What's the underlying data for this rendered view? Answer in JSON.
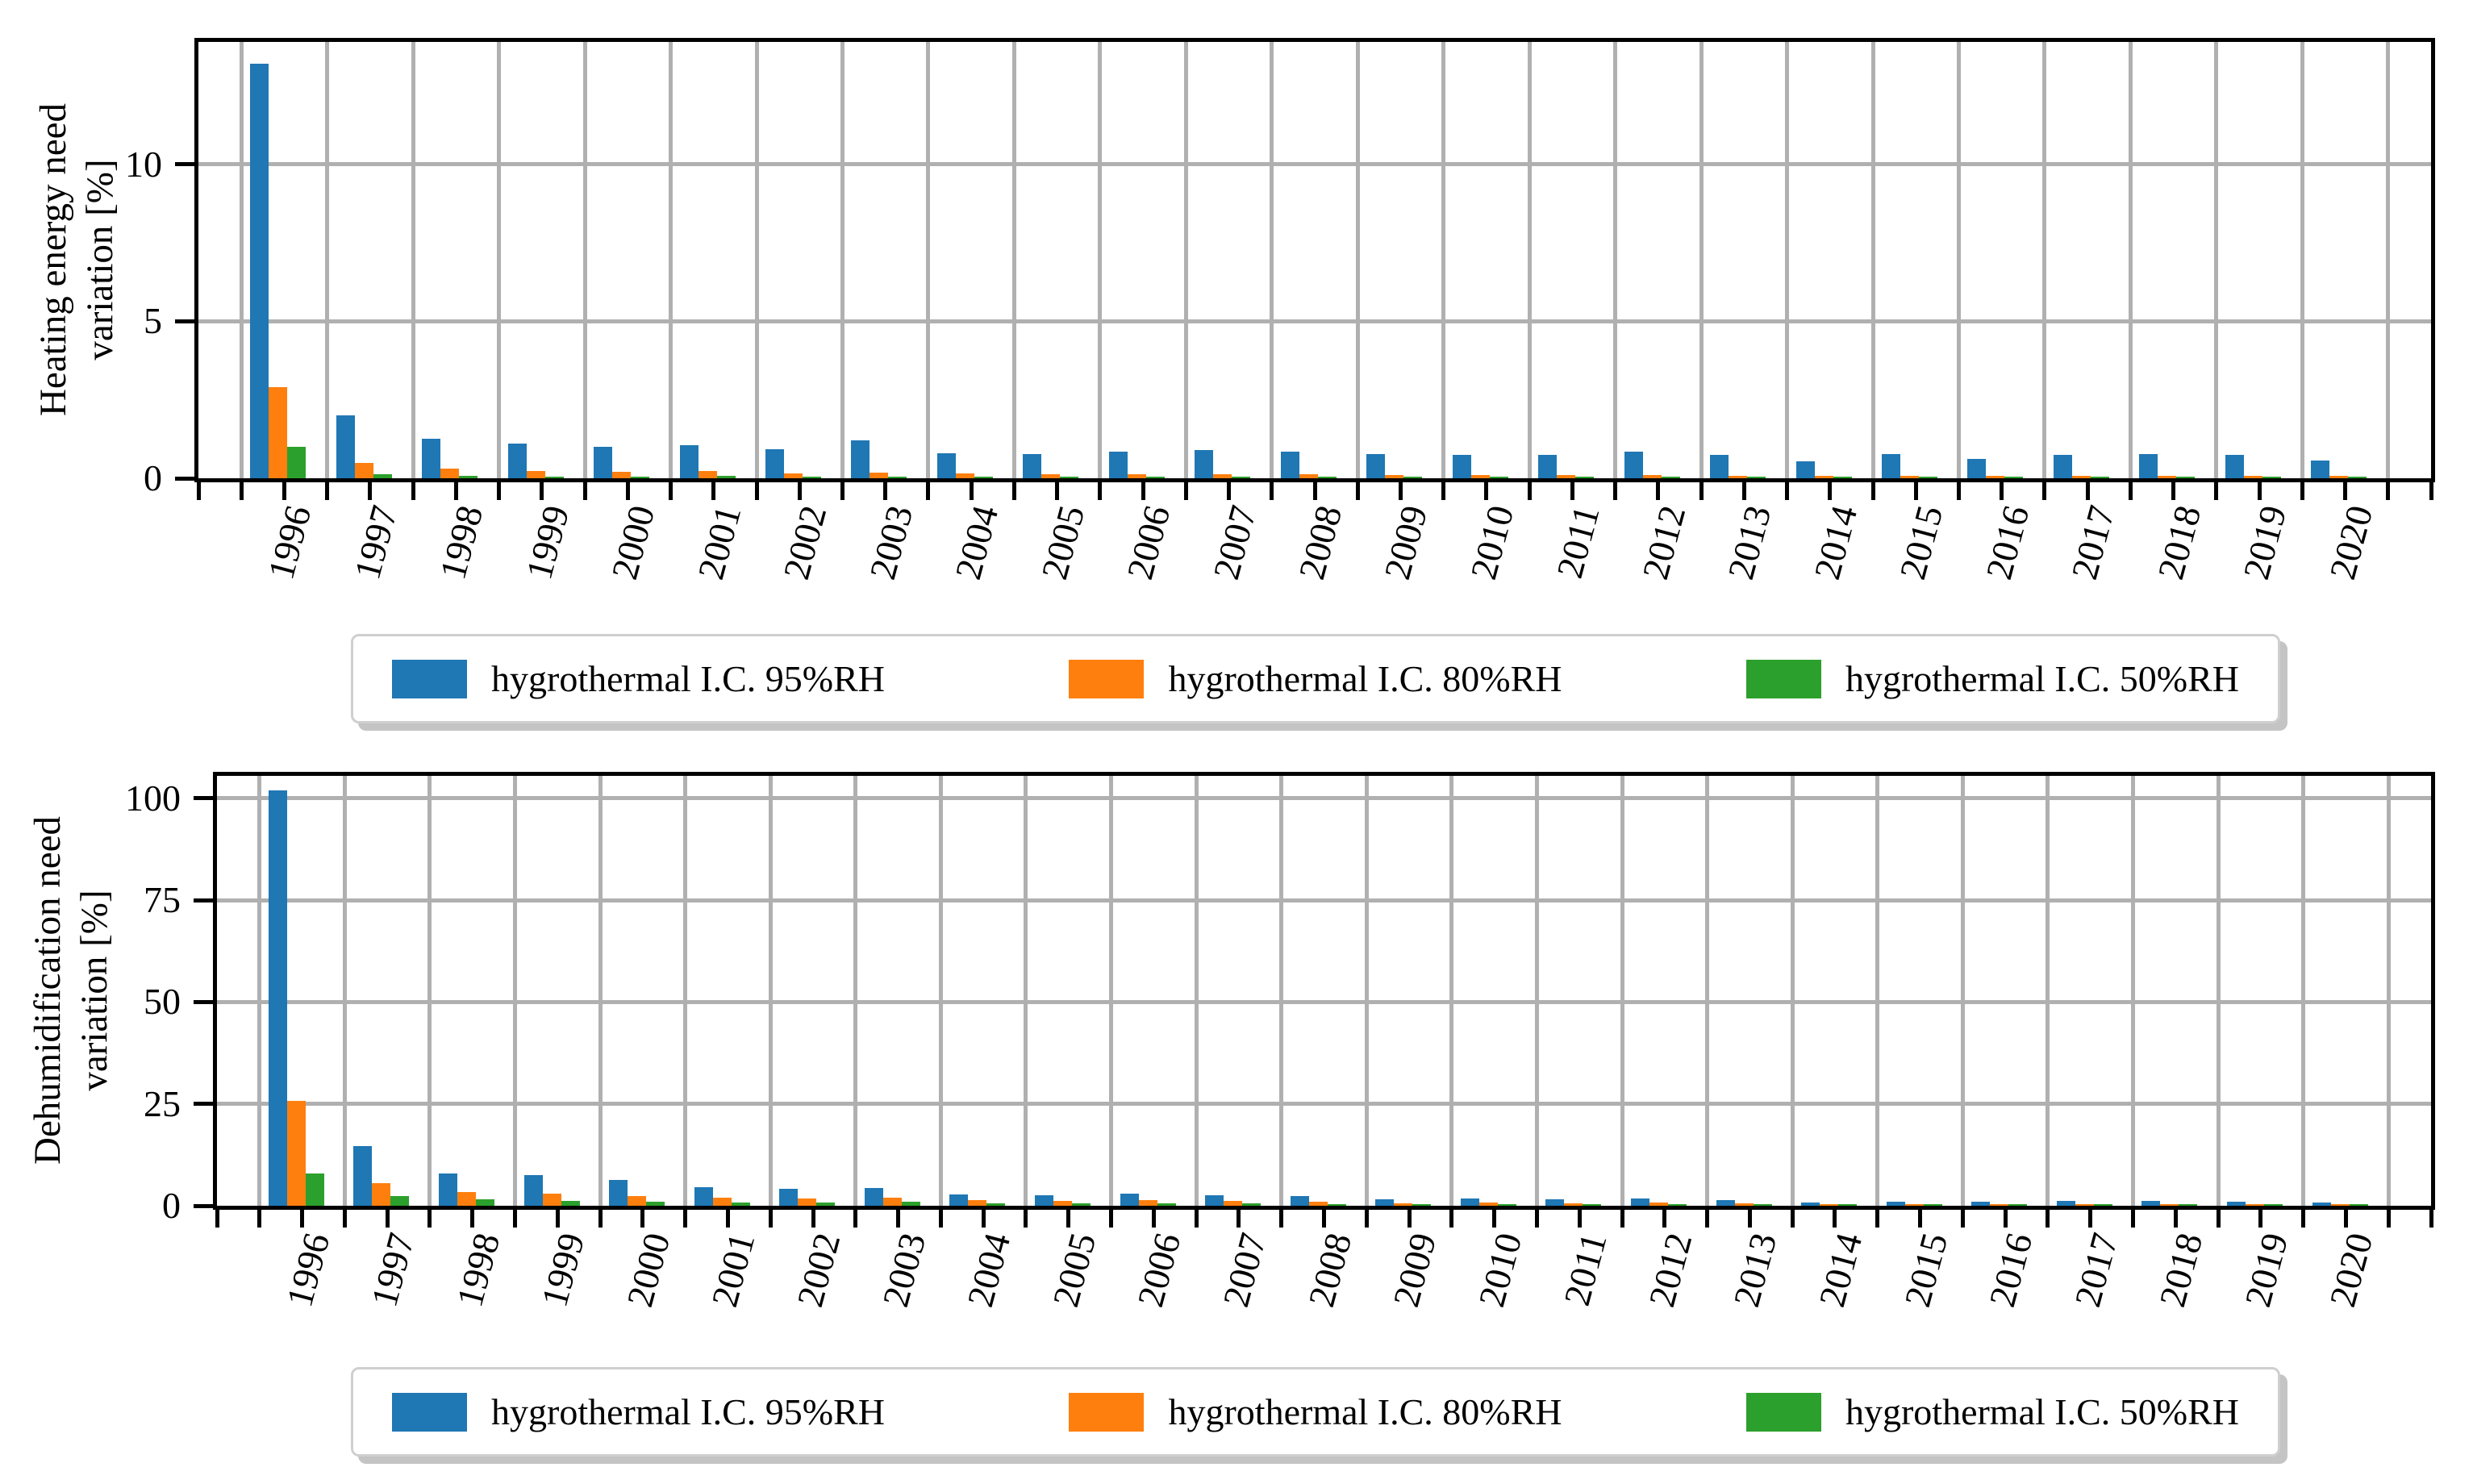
{
  "colors": {
    "series_blue": "#1f77b4",
    "series_orange": "#ff7f0e",
    "series_green": "#2ca02c",
    "gridline": "#b0b0b0",
    "axis": "#000000"
  },
  "legend": {
    "items": [
      {
        "label": "hygrothermal I.C. 95%RH",
        "color": "#1f77b4"
      },
      {
        "label": "hygrothermal I.C. 80%RH",
        "color": "#ff7f0e"
      },
      {
        "label": "hygrothermal I.C. 50%RH",
        "color": "#2ca02c"
      }
    ]
  },
  "chart_data": [
    {
      "type": "bar",
      "title": "",
      "ylabel": "Heating energy need\nvariation [%]",
      "xlabel": "",
      "grid": true,
      "legend_position": "below",
      "ylim": [
        0,
        13.9
      ],
      "yticks": [
        0,
        5,
        10
      ],
      "ytick_labels": [
        "0",
        "5",
        "10"
      ],
      "categories": [
        "1996",
        "1997",
        "1998",
        "1999",
        "2000",
        "2001",
        "2002",
        "2003",
        "2004",
        "2005",
        "2006",
        "2007",
        "2008",
        "2009",
        "2010",
        "2011",
        "2012",
        "2013",
        "2014",
        "2015",
        "2016",
        "2017",
        "2018",
        "2019",
        "2020"
      ],
      "series": [
        {
          "name": "hygrothermal I.C. 95%RH",
          "color": "#1f77b4",
          "values": [
            13.2,
            2.0,
            1.25,
            1.1,
            1.0,
            1.05,
            0.92,
            1.2,
            0.8,
            0.78,
            0.85,
            0.9,
            0.85,
            0.78,
            0.74,
            0.74,
            0.85,
            0.74,
            0.55,
            0.76,
            0.62,
            0.74,
            0.77,
            0.74,
            0.57
          ]
        },
        {
          "name": "hygrothermal I.C. 80%RH",
          "color": "#ff7f0e",
          "values": [
            2.9,
            0.48,
            0.3,
            0.22,
            0.21,
            0.22,
            0.16,
            0.18,
            0.15,
            0.13,
            0.13,
            0.14,
            0.13,
            0.11,
            0.11,
            0.1,
            0.11,
            0.07,
            0.07,
            0.08,
            0.08,
            0.08,
            0.08,
            0.08,
            0.07
          ]
        },
        {
          "name": "hygrothermal I.C. 50%RH",
          "color": "#2ca02c",
          "values": [
            1.0,
            0.12,
            0.08,
            0.06,
            0.06,
            0.07,
            0.06,
            0.05,
            0.05,
            0.04,
            0.05,
            0.05,
            0.04,
            0.04,
            0.04,
            0.03,
            0.04,
            0.03,
            0.02,
            0.03,
            0.02,
            0.03,
            0.02,
            0.03,
            0.02
          ]
        }
      ]
    },
    {
      "type": "bar",
      "title": "",
      "ylabel": "Dehumidification need\nvariation [%]",
      "xlabel": "",
      "grid": true,
      "legend_position": "below",
      "ylim": [
        0,
        105.5
      ],
      "yticks": [
        0,
        25,
        50,
        75,
        100
      ],
      "ytick_labels": [
        "0",
        "25",
        "50",
        "75",
        "100"
      ],
      "categories": [
        "1996",
        "1997",
        "1998",
        "1999",
        "2000",
        "2001",
        "2002",
        "2003",
        "2004",
        "2005",
        "2006",
        "2007",
        "2008",
        "2009",
        "2010",
        "2011",
        "2012",
        "2013",
        "2014",
        "2015",
        "2016",
        "2017",
        "2018",
        "2019",
        "2020"
      ],
      "series": [
        {
          "name": "hygrothermal I.C. 95%RH",
          "color": "#1f77b4",
          "values": [
            102.0,
            14.6,
            8.0,
            7.5,
            6.3,
            4.5,
            4.1,
            4.3,
            2.7,
            2.5,
            3.0,
            2.5,
            2.3,
            1.6,
            1.8,
            1.6,
            1.8,
            1.4,
            0.8,
            1.0,
            0.9,
            1.1,
            1.1,
            1.0,
            0.8
          ]
        },
        {
          "name": "hygrothermal I.C. 80%RH",
          "color": "#ff7f0e",
          "values": [
            25.7,
            5.6,
            3.3,
            2.9,
            2.3,
            2.0,
            1.8,
            2.0,
            1.3,
            1.2,
            1.4,
            1.1,
            0.9,
            0.6,
            0.7,
            0.6,
            0.7,
            0.5,
            0.3,
            0.45,
            0.4,
            0.45,
            0.45,
            0.4,
            0.35
          ]
        },
        {
          "name": "hygrothermal I.C. 50%RH",
          "color": "#2ca02c",
          "values": [
            8.0,
            2.3,
            1.5,
            1.2,
            1.0,
            0.8,
            0.8,
            0.9,
            0.5,
            0.5,
            0.6,
            0.5,
            0.4,
            0.25,
            0.3,
            0.25,
            0.3,
            0.2,
            0.1,
            0.15,
            0.1,
            0.2,
            0.1,
            0.12,
            0.1
          ]
        }
      ]
    }
  ]
}
